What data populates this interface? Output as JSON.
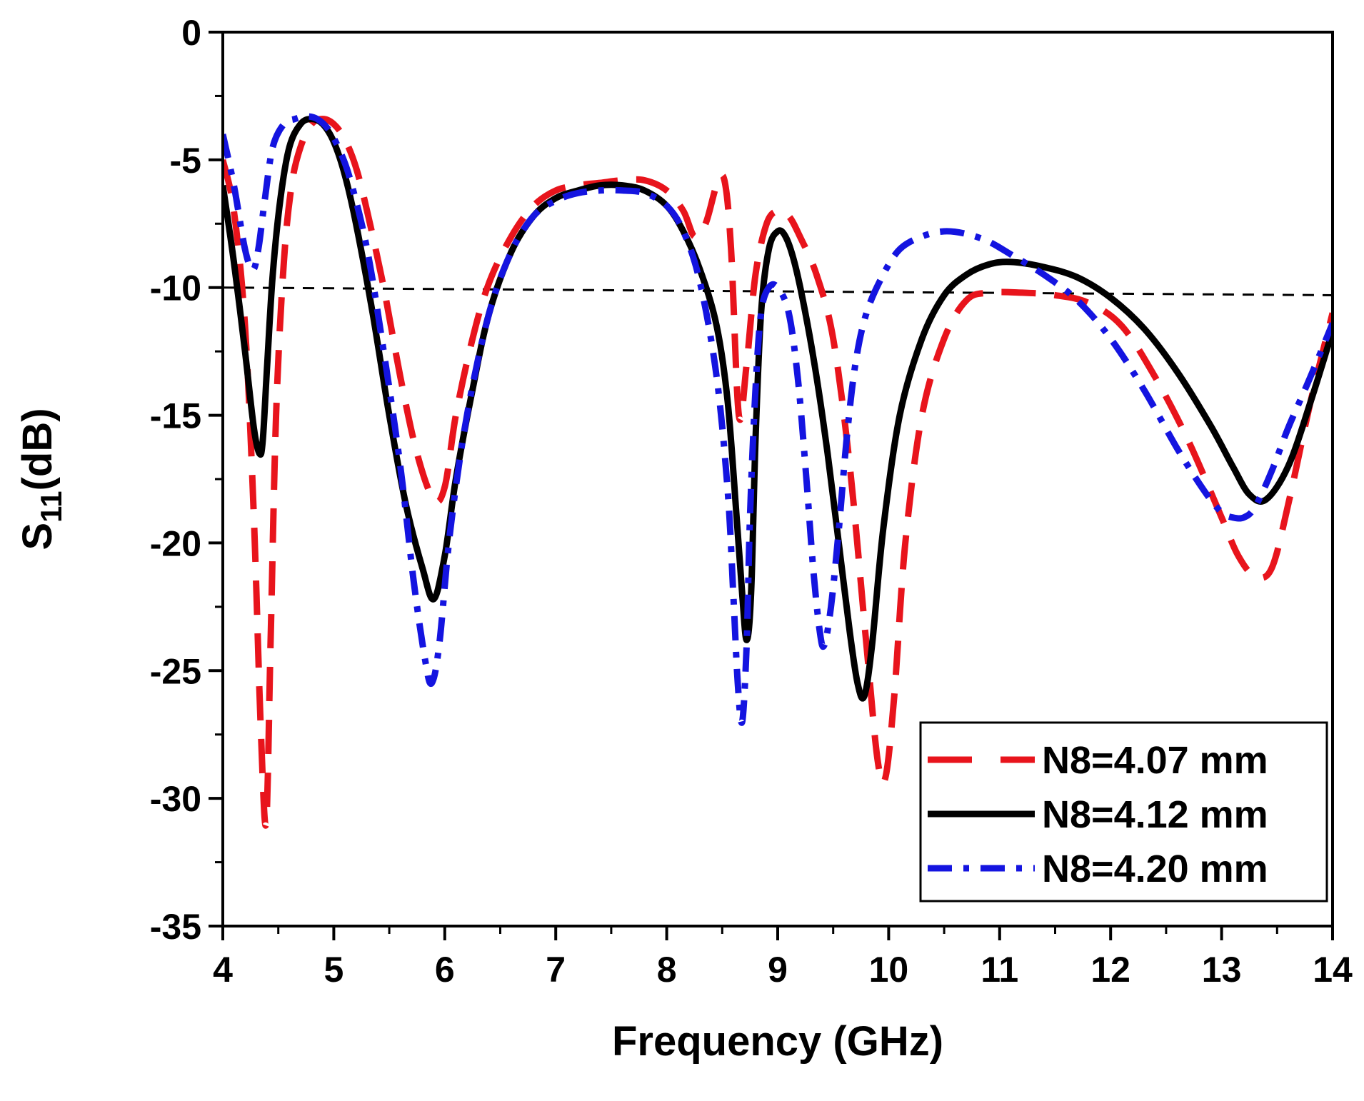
{
  "chart_data": {
    "type": "line",
    "xlabel": "Frequency (GHz)",
    "ylabel_main": "S",
    "ylabel_sub": "11",
    "ylabel_unit": "(dB)",
    "xlim": [
      4,
      14
    ],
    "ylim": [
      -35,
      0
    ],
    "xticks": [
      "4",
      "5",
      "6",
      "7",
      "8",
      "9",
      "10",
      "11",
      "12",
      "13",
      "14"
    ],
    "yticks": [
      "0",
      "-5",
      "-10",
      "-15",
      "-20",
      "-25",
      "-30",
      "-35"
    ],
    "legend_position": "bottom-right",
    "reference_line": {
      "y": [
        -10,
        -10.3
      ],
      "x": [
        4,
        14
      ],
      "style": "dashed",
      "color": "#000000"
    },
    "series": [
      {
        "name": "N8=4.07 mm",
        "color": "#e8141c",
        "dash": "long-dash",
        "x": [
          4.0,
          4.1,
          4.2,
          4.28,
          4.34,
          4.39,
          4.43,
          4.48,
          4.55,
          4.62,
          4.7,
          4.8,
          4.9,
          5.0,
          5.1,
          5.2,
          5.3,
          5.45,
          5.6,
          5.75,
          5.9,
          6.0,
          6.1,
          6.25,
          6.4,
          6.6,
          6.8,
          7.0,
          7.2,
          7.4,
          7.6,
          7.8,
          8.0,
          8.15,
          8.25,
          8.35,
          8.45,
          8.52,
          8.58,
          8.65,
          8.72,
          8.8,
          8.9,
          9.0,
          9.1,
          9.2,
          9.35,
          9.5,
          9.65,
          9.8,
          9.9,
          9.97,
          10.05,
          10.15,
          10.3,
          10.5,
          10.7,
          10.9,
          11.2,
          11.5,
          11.8,
          12.1,
          12.4,
          12.7,
          13.0,
          13.15,
          13.3,
          13.45,
          13.6,
          13.8,
          14.0
        ],
        "y": [
          -5.0,
          -7.0,
          -11.5,
          -19.0,
          -27.0,
          -31.0,
          -24.0,
          -15.0,
          -9.0,
          -6.0,
          -4.5,
          -3.6,
          -3.4,
          -3.6,
          -4.2,
          -5.3,
          -7.0,
          -10.0,
          -13.5,
          -16.5,
          -18.3,
          -17.8,
          -15.0,
          -12.0,
          -9.8,
          -8.0,
          -6.8,
          -6.2,
          -6.0,
          -5.9,
          -5.8,
          -5.8,
          -6.2,
          -7.0,
          -8.0,
          -7.5,
          -6.0,
          -5.8,
          -8.5,
          -15.0,
          -13.0,
          -9.5,
          -7.5,
          -7.0,
          -7.2,
          -8.0,
          -9.5,
          -12.0,
          -17.0,
          -24.0,
          -28.5,
          -29.2,
          -26.0,
          -20.0,
          -15.0,
          -12.0,
          -10.5,
          -10.2,
          -10.2,
          -10.3,
          -10.6,
          -11.5,
          -13.5,
          -16.0,
          -19.0,
          -20.5,
          -21.3,
          -21.0,
          -18.5,
          -14.5,
          -11.0
        ]
      },
      {
        "name": "N8=4.12 mm",
        "color": "#000000",
        "dash": "solid",
        "x": [
          4.0,
          4.1,
          4.2,
          4.28,
          4.33,
          4.36,
          4.4,
          4.45,
          4.52,
          4.6,
          4.7,
          4.8,
          4.9,
          5.0,
          5.1,
          5.2,
          5.35,
          5.5,
          5.65,
          5.8,
          5.9,
          6.0,
          6.1,
          6.25,
          6.4,
          6.6,
          6.8,
          7.0,
          7.2,
          7.4,
          7.6,
          7.8,
          8.0,
          8.15,
          8.3,
          8.45,
          8.55,
          8.63,
          8.68,
          8.72,
          8.76,
          8.8,
          8.85,
          8.92,
          9.0,
          9.07,
          9.15,
          9.25,
          9.35,
          9.45,
          9.55,
          9.65,
          9.72,
          9.78,
          9.85,
          9.95,
          10.1,
          10.3,
          10.5,
          10.7,
          10.9,
          11.1,
          11.4,
          11.7,
          12.0,
          12.3,
          12.6,
          12.9,
          13.1,
          13.25,
          13.4,
          13.6,
          13.8,
          14.0
        ],
        "y": [
          -6.0,
          -9.0,
          -12.5,
          -15.5,
          -16.5,
          -16.0,
          -13.0,
          -9.5,
          -6.5,
          -4.5,
          -3.6,
          -3.4,
          -3.6,
          -4.3,
          -5.6,
          -7.5,
          -11.0,
          -15.0,
          -18.5,
          -21.0,
          -22.2,
          -20.5,
          -17.5,
          -14.0,
          -11.0,
          -8.6,
          -7.2,
          -6.5,
          -6.2,
          -6.0,
          -6.0,
          -6.2,
          -6.8,
          -7.8,
          -9.3,
          -11.5,
          -14.5,
          -19.0,
          -22.0,
          -23.8,
          -22.0,
          -16.0,
          -11.0,
          -8.5,
          -7.8,
          -8.0,
          -9.0,
          -11.0,
          -13.5,
          -16.5,
          -20.0,
          -23.5,
          -25.5,
          -26.0,
          -24.0,
          -19.5,
          -15.0,
          -12.0,
          -10.3,
          -9.5,
          -9.1,
          -9.0,
          -9.2,
          -9.6,
          -10.4,
          -11.6,
          -13.3,
          -15.4,
          -17.0,
          -18.1,
          -18.3,
          -17.0,
          -14.5,
          -11.7
        ]
      },
      {
        "name": "N8=4.20 mm",
        "color": "#1414e0",
        "dash": "dash-dot",
        "x": [
          4.0,
          4.1,
          4.2,
          4.27,
          4.32,
          4.38,
          4.45,
          4.55,
          4.65,
          4.75,
          4.85,
          4.95,
          5.05,
          5.15,
          5.3,
          5.45,
          5.6,
          5.72,
          5.82,
          5.88,
          5.95,
          6.05,
          6.2,
          6.4,
          6.6,
          6.8,
          7.0,
          7.2,
          7.4,
          7.6,
          7.8,
          8.0,
          8.15,
          8.3,
          8.45,
          8.55,
          8.6,
          8.64,
          8.68,
          8.72,
          8.75,
          8.8,
          8.85,
          8.92,
          9.0,
          9.1,
          9.18,
          9.25,
          9.32,
          9.38,
          9.42,
          9.48,
          9.55,
          9.62,
          9.7,
          9.8,
          9.95,
          10.1,
          10.3,
          10.5,
          10.7,
          10.9,
          11.1,
          11.4,
          11.7,
          12.0,
          12.3,
          12.6,
          12.85,
          13.0,
          13.1,
          13.2,
          13.3,
          13.45,
          13.6,
          13.8,
          14.0
        ],
        "y": [
          -4.0,
          -6.0,
          -8.5,
          -9.3,
          -8.5,
          -6.5,
          -4.5,
          -3.6,
          -3.4,
          -3.3,
          -3.4,
          -3.8,
          -4.6,
          -5.8,
          -8.5,
          -12.5,
          -17.0,
          -21.5,
          -24.5,
          -25.5,
          -24.0,
          -19.5,
          -15.0,
          -11.0,
          -8.6,
          -7.2,
          -6.6,
          -6.3,
          -6.2,
          -6.2,
          -6.3,
          -6.8,
          -7.8,
          -9.8,
          -13.5,
          -18.0,
          -22.0,
          -25.5,
          -27.0,
          -24.0,
          -19.0,
          -14.0,
          -11.0,
          -10.0,
          -10.0,
          -11.0,
          -13.5,
          -17.0,
          -21.0,
          -23.5,
          -24.0,
          -22.5,
          -19.5,
          -16.0,
          -13.0,
          -11.0,
          -9.5,
          -8.5,
          -8.0,
          -7.8,
          -7.9,
          -8.2,
          -8.7,
          -9.5,
          -10.5,
          -12.0,
          -14.0,
          -16.3,
          -18.0,
          -18.8,
          -19.0,
          -19.0,
          -18.6,
          -17.2,
          -15.5,
          -13.5,
          -11.4
        ]
      }
    ]
  }
}
